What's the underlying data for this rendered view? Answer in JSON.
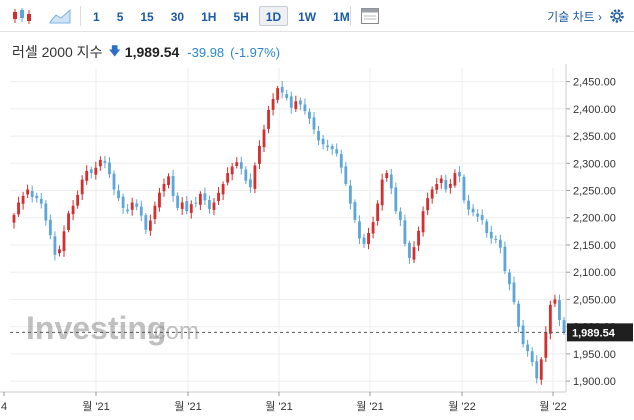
{
  "toolbar": {
    "icons": [
      "candlestick-icon",
      "area-chart-icon",
      "layout-icon",
      "gear-icon"
    ],
    "intervals": [
      "1",
      "5",
      "15",
      "30",
      "1H",
      "5H",
      "1D",
      "1W",
      "1M"
    ],
    "active_interval": "1D",
    "chart_type_label": "기술 차트 ›"
  },
  "quote": {
    "name": "러셀 2000 지수",
    "price": "1,989.54",
    "change": "-39.98",
    "change_pct": "(-1.97%)",
    "down_color": "#2a6fc9"
  },
  "watermark": {
    "brand": "Investing",
    "suffix": ".com"
  },
  "chart_data": {
    "type": "candlestick",
    "title": "",
    "xlabel": "",
    "ylabel": "",
    "ylim": [
      1880,
      2475
    ],
    "y_ticks": [
      "2,450.00",
      "2,400.00",
      "2,350.00",
      "2,300.00",
      "2,250.00",
      "2,200.00",
      "2,150.00",
      "2,100.00",
      "2,050.00",
      "2,000.00",
      "1,950.00",
      "1,900.00"
    ],
    "y_tick_values": [
      2450,
      2400,
      2350,
      2300,
      2250,
      2200,
      2150,
      2100,
      2050,
      2000,
      1950,
      1900
    ],
    "x_tick_labels": [
      "4",
      "월 '21",
      "월 '21",
      "월 '21",
      "월 '21",
      "월 '22",
      "월 '22"
    ],
    "last_price_label": "1,989.54",
    "last_price": 1989.54,
    "grid": true,
    "up_color": "#d32f2f",
    "down_color": "#5ea6d8",
    "closes": [
      2205,
      2228,
      2240,
      2252,
      2238,
      2236,
      2226,
      2195,
      2168,
      2132,
      2142,
      2175,
      2208,
      2222,
      2242,
      2270,
      2286,
      2282,
      2292,
      2306,
      2301,
      2280,
      2252,
      2236,
      2218,
      2212,
      2228,
      2220,
      2204,
      2178,
      2195,
      2222,
      2246,
      2262,
      2276,
      2240,
      2218,
      2228,
      2212,
      2225,
      2226,
      2244,
      2232,
      2216,
      2228,
      2246,
      2262,
      2282,
      2294,
      2302,
      2290,
      2268,
      2256,
      2296,
      2332,
      2362,
      2398,
      2418,
      2438,
      2430,
      2420,
      2402,
      2414,
      2408,
      2396,
      2382,
      2362,
      2342,
      2335,
      2330,
      2326,
      2318,
      2292,
      2262,
      2226,
      2196,
      2162,
      2152,
      2172,
      2192,
      2226,
      2270,
      2282,
      2254,
      2212,
      2196,
      2152,
      2126,
      2146,
      2176,
      2212,
      2236,
      2252,
      2262,
      2272,
      2252,
      2262,
      2282,
      2276,
      2232,
      2215,
      2210,
      2202,
      2196,
      2172,
      2162,
      2160,
      2145,
      2102,
      2078,
      2045,
      2000,
      1968,
      1955,
      1935,
      1905,
      1940,
      1990,
      2040,
      2050,
      2012,
      1989.54
    ]
  }
}
